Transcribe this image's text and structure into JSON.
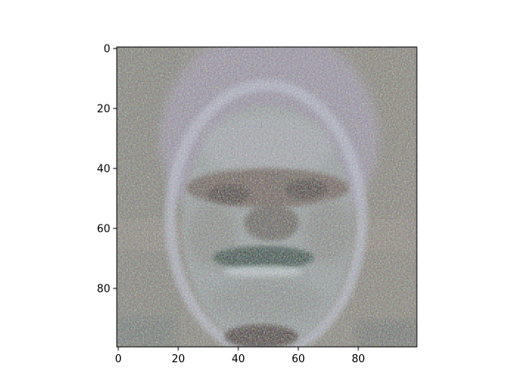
{
  "chart_data": {
    "type": "heatmap",
    "title": "",
    "xlabel": "",
    "ylabel": "",
    "content": "pixelated face image (imshow)",
    "image_size": [
      100,
      100
    ],
    "xlim": [
      -0.5,
      99.5
    ],
    "ylim": [
      99.5,
      -0.5
    ],
    "y_inverted": true,
    "x_ticks": [
      0,
      20,
      40,
      60,
      80
    ],
    "y_ticks": [
      0,
      20,
      40,
      60,
      80
    ],
    "x_tick_labels": [
      "0",
      "20",
      "40",
      "60",
      "80"
    ],
    "y_tick_labels": [
      "0",
      "20",
      "40",
      "60",
      "80"
    ],
    "grid": false,
    "legend": "none",
    "colors": {
      "background": "#8a8a82",
      "face": "#9aa3a6",
      "outline": "#b4b8c6",
      "hair": "#a49aa8",
      "dark_features": "#3e3a36",
      "mouth": "#2f5148",
      "eyes": "#5a4a40"
    }
  }
}
